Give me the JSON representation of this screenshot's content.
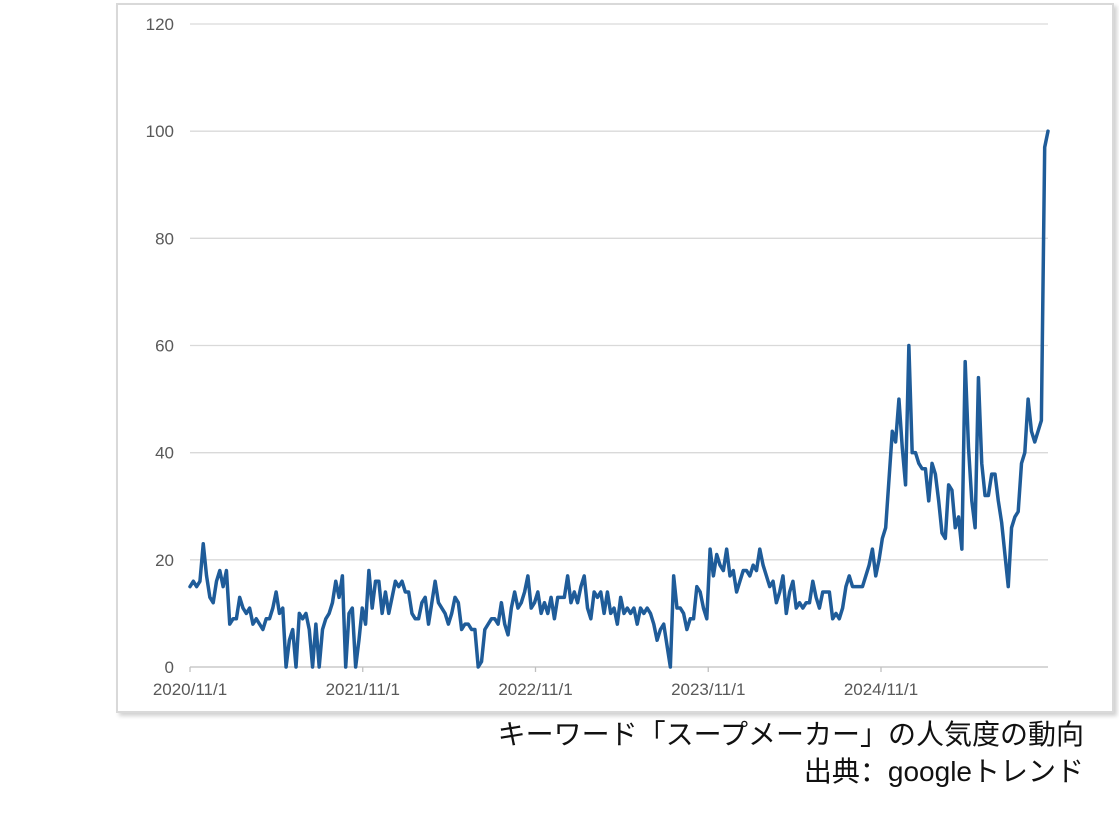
{
  "caption": {
    "line1": "キーワード「スープメーカー」の人気度の動向",
    "line2": "出典：googleトレンド"
  },
  "chart_data": {
    "type": "line",
    "title": "",
    "x_start": "2020/11/1",
    "frequency": "weekly",
    "x_ticks": [
      "2020/11/1",
      "2021/11/1",
      "2022/11/1",
      "2023/11/1",
      "2024/11/1"
    ],
    "y_ticks": [
      0,
      20,
      40,
      60,
      80,
      100,
      120
    ],
    "ylim": [
      0,
      120
    ],
    "grid": true,
    "legend": "none",
    "line_color": "#1f5c99",
    "grid_color": "#d9d9d9",
    "axis_color": "#bfbfbf",
    "axis_label_color": "#595959",
    "series": [
      {
        "name": "スープメーカー",
        "values": [
          15,
          16,
          15,
          16,
          23,
          17,
          13,
          12,
          16,
          18,
          15,
          18,
          8,
          9,
          9,
          13,
          11,
          10,
          11,
          8,
          9,
          8,
          7,
          9,
          9,
          11,
          14,
          10,
          11,
          0,
          5,
          7,
          0,
          10,
          9,
          10,
          7,
          0,
          8,
          0,
          7,
          9,
          10,
          12,
          16,
          13,
          17,
          0,
          10,
          11,
          0,
          5,
          11,
          8,
          18,
          11,
          16,
          16,
          10,
          14,
          10,
          13,
          16,
          15,
          16,
          14,
          14,
          10,
          9,
          9,
          12,
          13,
          8,
          12,
          16,
          12,
          11,
          10,
          8,
          10,
          13,
          12,
          7,
          8,
          8,
          7,
          7,
          0,
          1,
          7,
          8,
          9,
          9,
          8,
          12,
          8,
          6,
          11,
          14,
          11,
          12,
          14,
          17,
          11,
          12,
          14,
          10,
          12,
          10,
          13,
          9,
          13,
          13,
          13,
          17,
          12,
          14,
          12,
          15,
          17,
          11,
          9,
          14,
          13,
          14,
          10,
          14,
          10,
          11,
          8,
          13,
          10,
          11,
          10,
          11,
          8,
          11,
          10,
          11,
          10,
          8,
          5,
          7,
          8,
          4,
          0,
          17,
          11,
          11,
          10,
          7,
          9,
          9,
          15,
          14,
          11,
          9,
          22,
          17,
          21,
          19,
          18,
          22,
          17,
          18,
          14,
          16,
          18,
          18,
          17,
          19,
          18,
          22,
          19,
          17,
          15,
          16,
          12,
          14,
          17,
          10,
          14,
          16,
          11,
          12,
          11,
          12,
          12,
          16,
          13,
          11,
          14,
          14,
          14,
          9,
          10,
          9,
          11,
          15,
          17,
          15,
          15,
          15,
          15,
          17,
          19,
          22,
          17,
          20,
          24,
          26,
          35,
          44,
          42,
          50,
          41,
          34,
          60,
          40,
          40,
          38,
          37,
          37,
          31,
          38,
          36,
          31,
          25,
          24,
          34,
          33,
          26,
          28,
          22,
          57,
          41,
          31,
          26,
          54,
          38,
          32,
          32,
          36,
          36,
          31,
          27,
          21,
          15,
          26,
          28,
          29,
          38,
          40,
          50,
          44,
          42,
          44,
          46,
          97,
          100
        ]
      }
    ]
  }
}
